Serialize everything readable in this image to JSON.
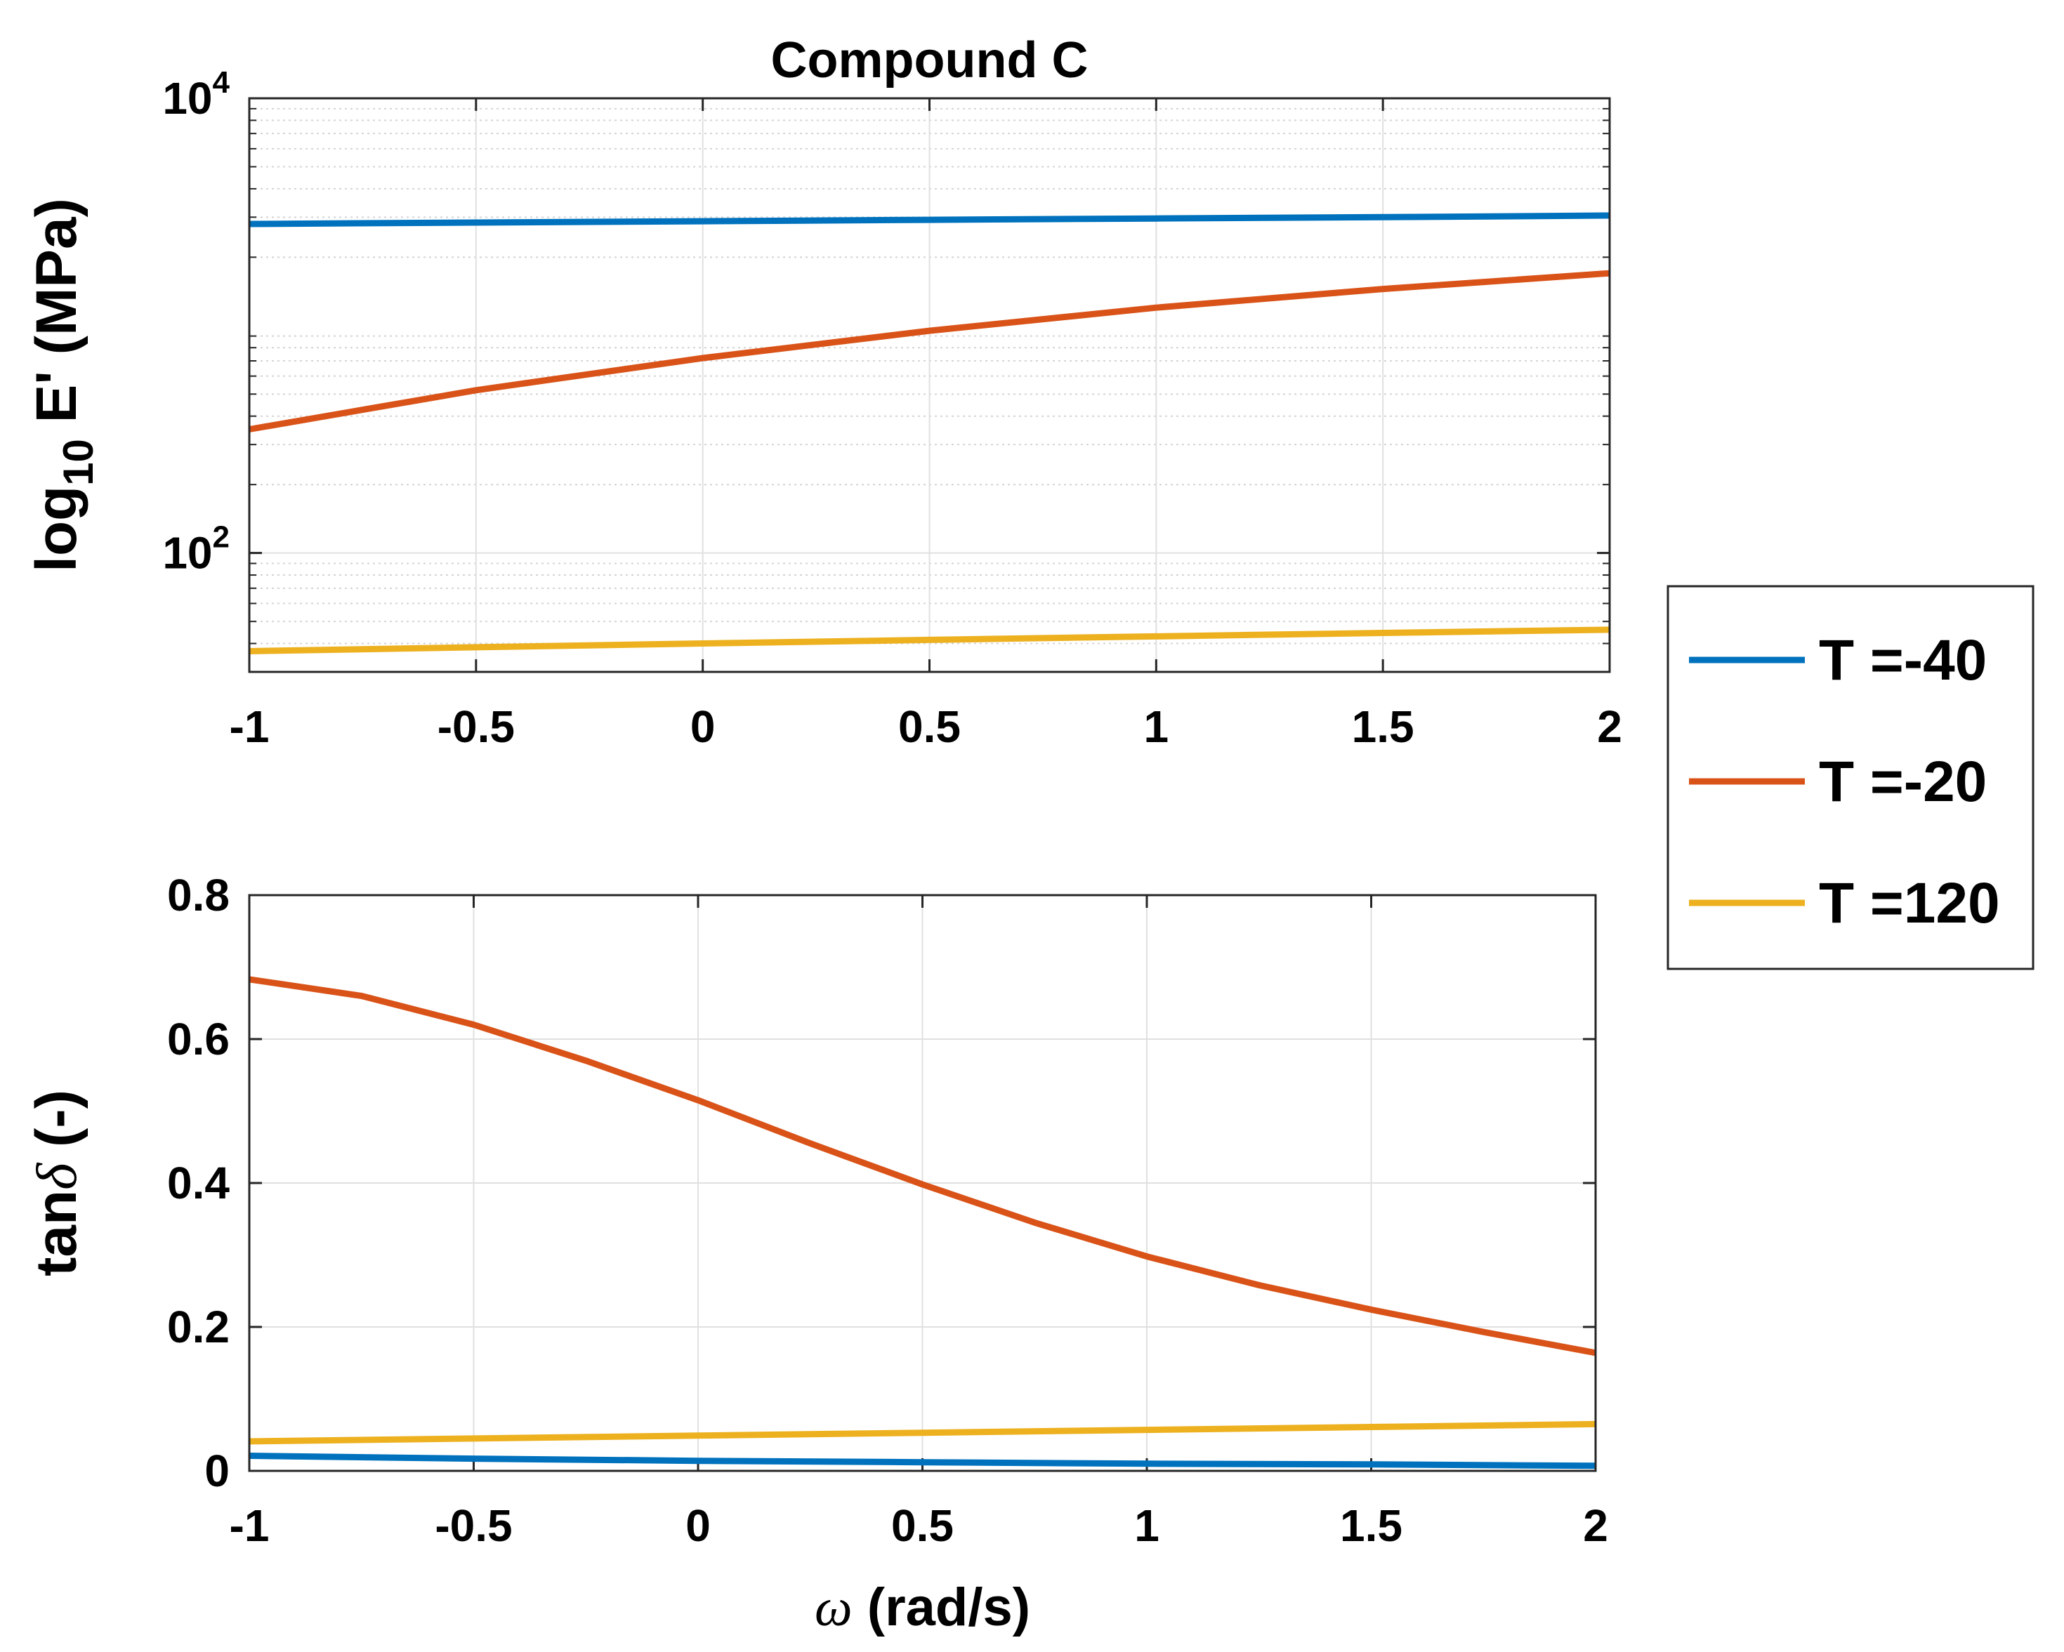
{
  "chart_data": [
    {
      "id": "top",
      "type": "line",
      "title": "Compound C",
      "ylabel": "log",
      "ylabel_sub": "10",
      "ylabel_rest": " E' (MPa)",
      "yscale": "log",
      "xlim": [
        -1,
        2
      ],
      "ylim": [
        30,
        10000
      ],
      "x_ticks": [
        -1,
        -0.5,
        0,
        0.5,
        1,
        1.5,
        2
      ],
      "x_tick_labels": [
        "-1",
        "-0.5",
        "0",
        "0.5",
        "1",
        "1.5",
        "2"
      ],
      "y_ticks": [
        100,
        10000
      ],
      "y_tick_labels": [
        {
          "base": "10",
          "exp": "2"
        },
        {
          "base": "10",
          "exp": "4"
        }
      ],
      "grid": true,
      "series": [
        {
          "name": "T =-40",
          "color": "#0072BD",
          "x": [
            -1,
            -0.5,
            0,
            0.5,
            1,
            1.5,
            2
          ],
          "y": [
            2800,
            2840,
            2880,
            2920,
            2960,
            3000,
            3050
          ]
        },
        {
          "name": "T =-20",
          "color": "#D95319",
          "x": [
            -1,
            -0.5,
            0,
            0.5,
            1,
            1.5,
            2
          ],
          "y": [
            350,
            520,
            720,
            950,
            1200,
            1450,
            1700
          ]
        },
        {
          "name": "T =120",
          "color": "#EDB120",
          "x": [
            -1,
            -0.5,
            0,
            0.5,
            1,
            1.5,
            2
          ],
          "y": [
            37,
            38.5,
            40,
            41.5,
            43,
            44.5,
            46
          ]
        }
      ]
    },
    {
      "id": "bottom",
      "type": "line",
      "title": "",
      "xlabel_symbol": "ω",
      "xlabel": "(rad/s)",
      "ylabel": "tan",
      "ylabel_symbol": "δ",
      "ylabel_rest": " (-)",
      "yscale": "linear",
      "xlim": [
        -1,
        2
      ],
      "ylim": [
        0,
        0.8
      ],
      "x_ticks": [
        -1,
        -0.5,
        0,
        0.5,
        1,
        1.5,
        2
      ],
      "x_tick_labels": [
        "-1",
        "-0.5",
        "0",
        "0.5",
        "1",
        "1.5",
        "2"
      ],
      "y_ticks": [
        0,
        0.2,
        0.4,
        0.6,
        0.8
      ],
      "y_tick_labels": [
        "0",
        "0.2",
        "0.4",
        "0.6",
        "0.8"
      ],
      "grid": true,
      "series": [
        {
          "name": "T =-40",
          "color": "#0072BD",
          "x": [
            -1,
            -0.5,
            0,
            0.5,
            1,
            1.5,
            2
          ],
          "y": [
            0.021,
            0.017,
            0.014,
            0.012,
            0.01,
            0.009,
            0.007
          ]
        },
        {
          "name": "T =-20",
          "color": "#D95319",
          "x": [
            -1,
            -0.75,
            -0.5,
            -0.25,
            0,
            0.25,
            0.5,
            0.75,
            1,
            1.25,
            1.5,
            1.75,
            2
          ],
          "y": [
            0.683,
            0.66,
            0.62,
            0.57,
            0.515,
            0.455,
            0.398,
            0.345,
            0.298,
            0.258,
            0.224,
            0.193,
            0.164
          ]
        },
        {
          "name": "T =120",
          "color": "#EDB120",
          "x": [
            -1,
            -0.5,
            0,
            0.5,
            1,
            1.5,
            2
          ],
          "y": [
            0.041,
            0.045,
            0.049,
            0.053,
            0.057,
            0.061,
            0.065
          ]
        }
      ]
    }
  ],
  "legend": {
    "placement": "right-middle",
    "entries": [
      {
        "label": "T =-40",
        "color": "#0072BD"
      },
      {
        "label": "T =-20",
        "color": "#D95319"
      },
      {
        "label": "T =120",
        "color": "#EDB120"
      }
    ]
  }
}
